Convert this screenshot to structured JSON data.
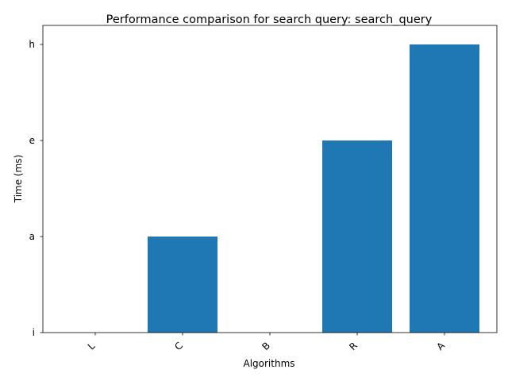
{
  "chart_data": {
    "type": "bar",
    "title": "Performance comparison for search query: search_query",
    "xlabel": "Algorithms",
    "ylabel": "Time (ms)",
    "categories": [
      "L",
      "C",
      "B",
      "R",
      "A"
    ],
    "values": [
      0,
      1,
      0,
      2,
      3
    ],
    "y_ticks": [
      "i",
      "a",
      "e",
      "h"
    ],
    "ylim": [
      0,
      3
    ],
    "x_tick_rotation_deg": 45,
    "bar_color": "#1f77b4",
    "grid": false,
    "legend": "none"
  }
}
